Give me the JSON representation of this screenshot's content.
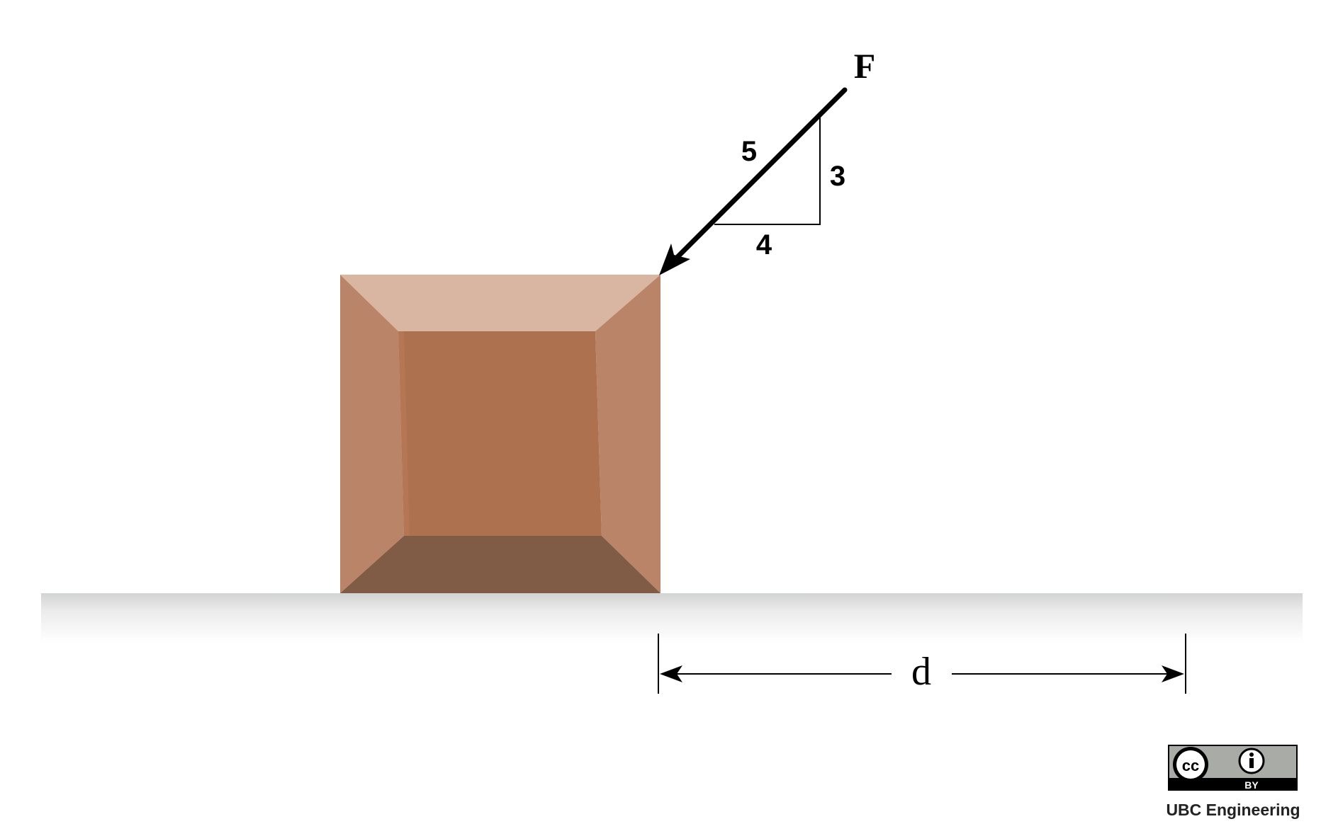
{
  "force": {
    "label": "F",
    "slope_hypotenuse": "5",
    "slope_rise": "3",
    "slope_run": "4"
  },
  "dimension": {
    "label": "d"
  },
  "license": {
    "cc_text": "cc",
    "by_text": "BY",
    "attribution": "UBC Engineering"
  },
  "colors": {
    "box_top": "#D8B6A2",
    "box_side": "#BA8468",
    "box_front": "#AE7150",
    "box_bottom": "#805B45",
    "ground": "#D4D4D4",
    "ink": "#000000",
    "badge_gray": "#A9ABA7"
  }
}
